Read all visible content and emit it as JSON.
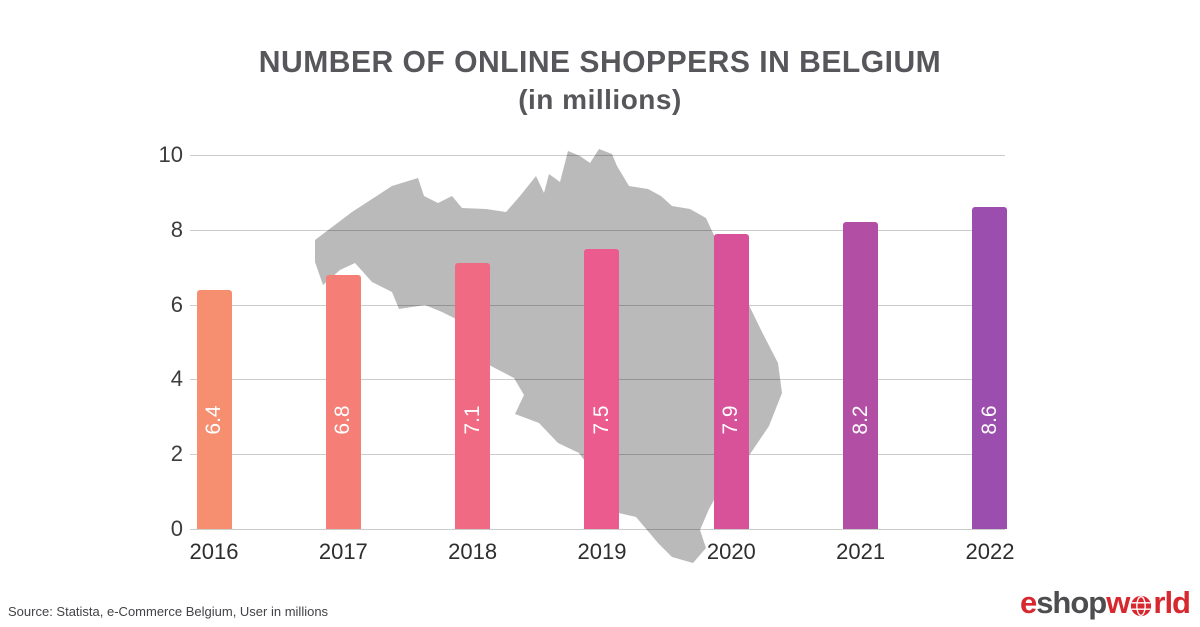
{
  "header": {
    "title_line1": "NUMBER OF ONLINE SHOPPERS IN BELGIUM",
    "title_line2": "(in millions)"
  },
  "footer": {
    "source": "Source: Statista, e-Commerce Belgium, User in millions"
  },
  "logo": {
    "part_e": "e",
    "part_shop": "shop",
    "part_w": "w",
    "part_rld": "rld",
    "red": "#d7282f",
    "gray": "#4d4d4f",
    "globe_icon": "globe-icon"
  },
  "chart_data": {
    "type": "bar",
    "title": "NUMBER OF ONLINE SHOPPERS IN BELGIUM (in millions)",
    "categories": [
      "2016",
      "2017",
      "2018",
      "2019",
      "2020",
      "2021",
      "2022"
    ],
    "values": [
      6.4,
      6.8,
      7.1,
      7.5,
      7.9,
      8.2,
      8.6
    ],
    "bar_labels": [
      "6.4",
      "6.8",
      "7.1",
      "7.5",
      "7.9",
      "8.2",
      "8.6"
    ],
    "bar_colors": [
      "#F68E70",
      "#F57E76",
      "#F16A83",
      "#EC5B8E",
      "#D8529A",
      "#B24FA5",
      "#9C4EAF"
    ],
    "xlabel": "",
    "ylabel": "",
    "ylim": [
      0,
      10
    ],
    "yticks": [
      0,
      2,
      4,
      6,
      8,
      10
    ],
    "grid": true,
    "legend": false,
    "value_label_color": "#FFFFFF",
    "background_map": "belgium-silhouette",
    "map_color": "#BABABA"
  }
}
